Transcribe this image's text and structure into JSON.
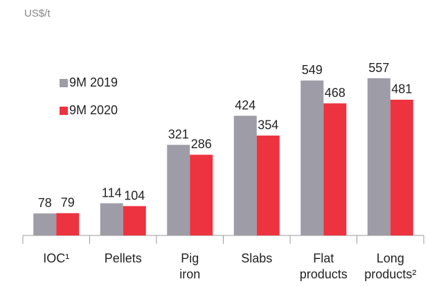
{
  "chart_data": {
    "type": "bar",
    "subtitle": "US$/t",
    "categories": [
      "IOC¹",
      "Pellets",
      "Pig iron",
      "Slabs",
      "Flat products",
      "Long products²"
    ],
    "series": [
      {
        "name": "9M 2019",
        "color": "#9e9ca7",
        "values": [
          78,
          114,
          321,
          424,
          549,
          557
        ]
      },
      {
        "name": "9M 2020",
        "color": "#ee3340",
        "values": [
          79,
          104,
          286,
          354,
          468,
          481
        ]
      }
    ]
  }
}
